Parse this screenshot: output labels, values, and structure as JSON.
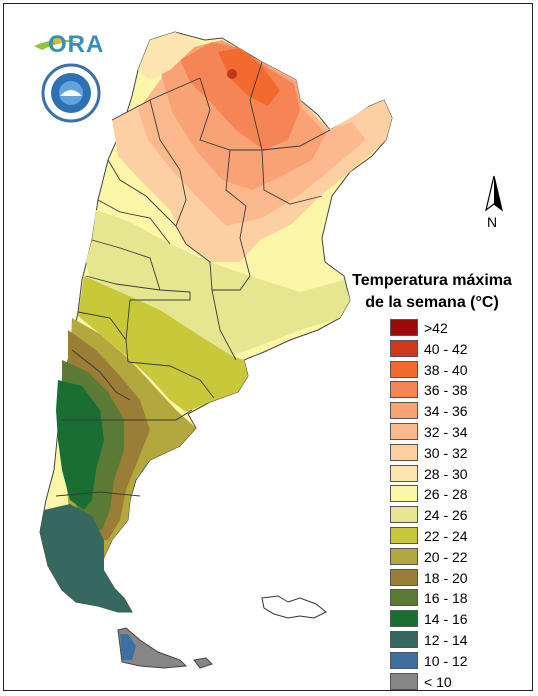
{
  "logo": {
    "text": "ORA"
  },
  "seal": {
    "name": "smn-seal"
  },
  "north_arrow": {
    "label": "N"
  },
  "legend": {
    "title_line1": "Temperatura máxima",
    "title_line2": "de la semana (°C)",
    "items": [
      {
        "label": ">42",
        "color": "#9e0a0a"
      },
      {
        "label": "40 - 42",
        "color": "#d0381b"
      },
      {
        "label": "38 - 40",
        "color": "#f26a2e"
      },
      {
        "label": "36 - 38",
        "color": "#f58556"
      },
      {
        "label": "34 - 36",
        "color": "#f8a275"
      },
      {
        "label": "32 - 34",
        "color": "#fbb98d"
      },
      {
        "label": "30 - 32",
        "color": "#fdd0a4"
      },
      {
        "label": "28 - 30",
        "color": "#fde5b1"
      },
      {
        "label": "26 - 28",
        "color": "#fbf6a8"
      },
      {
        "label": "24 - 26",
        "color": "#e6e690"
      },
      {
        "label": "22 - 24",
        "color": "#c9c83a"
      },
      {
        "label": "20 - 22",
        "color": "#b3a83d"
      },
      {
        "label": "18 - 20",
        "color": "#9a7d36"
      },
      {
        "label": "16 - 18",
        "color": "#5b7a36"
      },
      {
        "label": "14 - 16",
        "color": "#1b6e33"
      },
      {
        "label": "12 - 14",
        "color": "#37685f"
      },
      {
        "label": "10 - 12",
        "color": "#3e6fa0"
      },
      {
        "label": "< 10",
        "color": "#868686"
      }
    ]
  }
}
